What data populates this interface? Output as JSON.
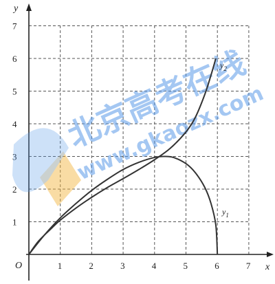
{
  "chart_data": {
    "type": "line",
    "xlabel": "x",
    "ylabel": "y",
    "origin_label": "O",
    "xlim": [
      0,
      7
    ],
    "ylim": [
      0,
      7
    ],
    "x_ticks": [
      "1",
      "2",
      "3",
      "4",
      "5",
      "6",
      "7"
    ],
    "y_ticks": [
      "1",
      "2",
      "3",
      "4",
      "5",
      "6",
      "7"
    ],
    "grid": true,
    "series": [
      {
        "name": "y1",
        "label_main": "y",
        "label_sub": "1",
        "x": [
          0,
          0.5,
          1,
          1.5,
          2,
          2.5,
          3,
          3.5,
          4,
          4.3,
          4.6,
          5,
          5.3,
          5.6,
          5.8,
          5.95,
          6
        ],
        "y": [
          0,
          0.6,
          1.12,
          1.56,
          1.96,
          2.3,
          2.6,
          2.82,
          2.97,
          3.0,
          2.97,
          2.78,
          2.5,
          2.05,
          1.55,
          0.9,
          0
        ]
      },
      {
        "name": "y2",
        "label_main": "y",
        "label_sub": "2",
        "x": [
          0,
          0.3,
          0.7,
          1,
          1.5,
          2,
          2.5,
          3,
          3.5,
          4,
          4.5,
          5,
          5.3,
          5.6,
          5.8,
          5.95
        ],
        "y": [
          0,
          0.4,
          0.78,
          1.05,
          1.42,
          1.75,
          2.05,
          2.32,
          2.6,
          2.9,
          3.25,
          3.75,
          4.2,
          4.9,
          5.5,
          6.0
        ]
      }
    ]
  },
  "watermark": {
    "title": "北京高考在线",
    "url": "www.gkaozx.com",
    "color": "#5b9be8",
    "accent_color": "#f2b43c"
  }
}
